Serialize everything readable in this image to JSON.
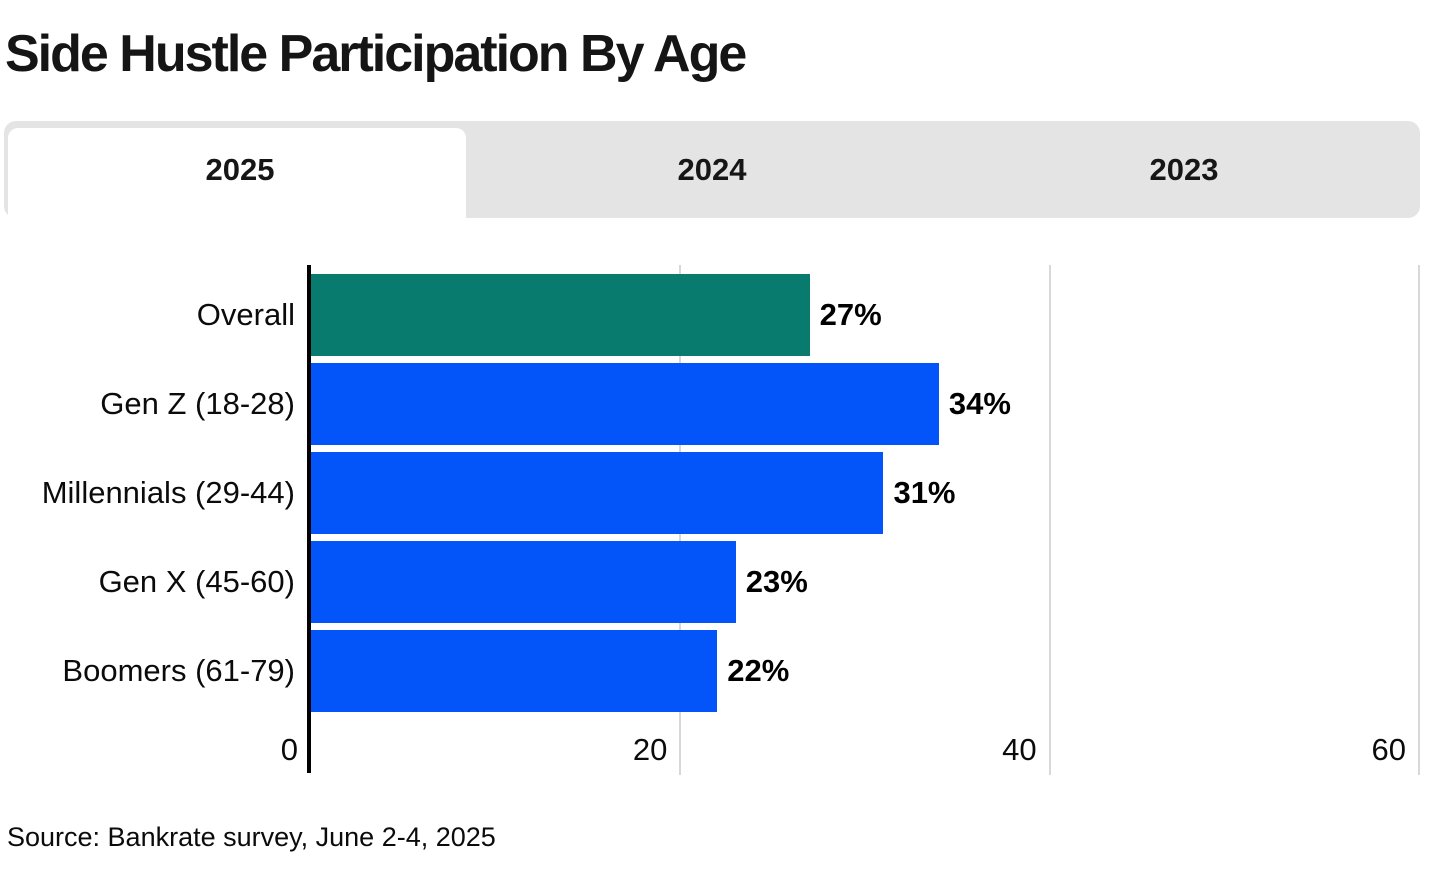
{
  "page": {
    "title": "Side Hustle Participation By Age",
    "source": "Source: Bankrate survey, June 2-4, 2025"
  },
  "tabs": [
    {
      "label": "2025",
      "active": true
    },
    {
      "label": "2024",
      "active": false
    },
    {
      "label": "2023",
      "active": false
    }
  ],
  "colors": {
    "accent_teal": "#087a6e",
    "accent_blue": "#0455f9",
    "tab_bar_bg": "#e4e4e4",
    "active_tab_bg": "#ffffff",
    "gridline": "#d8d8d8",
    "axis": "#000000",
    "text": "#111111"
  },
  "chart_data": {
    "type": "bar",
    "orientation": "horizontal",
    "title": "Side Hustle Participation By Age",
    "categories": [
      "Overall",
      "Gen Z (18-28)",
      "Millennials (29-44)",
      "Gen X (45-60)",
      "Boomers (61-79)"
    ],
    "values": [
      27,
      34,
      31,
      23,
      22
    ],
    "value_labels": [
      "27%",
      "34%",
      "31%",
      "23%",
      "22%"
    ],
    "bar_colors": [
      "#087a6e",
      "#0455f9",
      "#0455f9",
      "#0455f9",
      "#0455f9"
    ],
    "xlabel": "",
    "ylabel": "",
    "xlim": [
      0,
      60
    ],
    "xticks": [
      0,
      20,
      40,
      60
    ],
    "grid": true,
    "legend": false
  }
}
